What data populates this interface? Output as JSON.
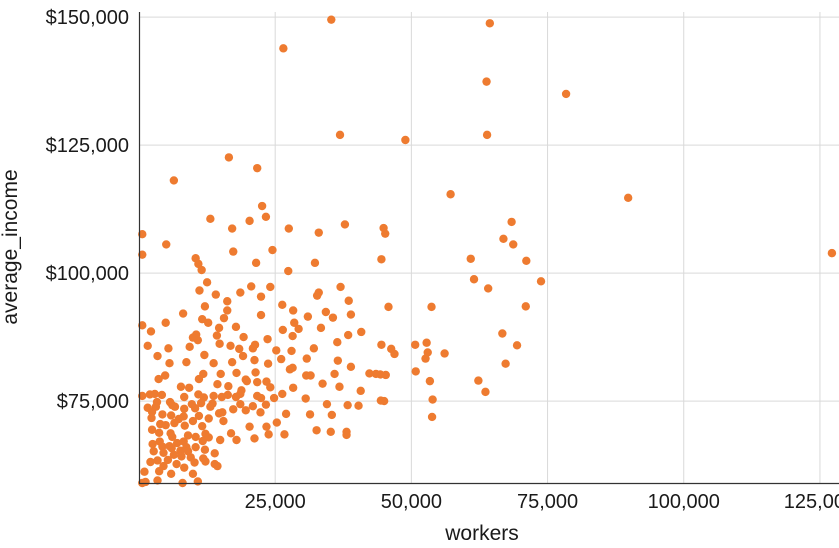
{
  "chart_data": {
    "type": "scatter",
    "xlabel": "workers",
    "ylabel": "average_income",
    "xlim": [
      0,
      128500
    ],
    "ylim": [
      59000,
      151000
    ],
    "x_ticks": [
      25000,
      50000,
      75000,
      100000,
      125000
    ],
    "x_tick_labels": [
      "25,000",
      "50,000",
      "75,000",
      "100,000",
      "125,000"
    ],
    "y_ticks": [
      75000,
      100000,
      125000,
      150000
    ],
    "y_tick_labels": [
      "$75,000",
      "$100,000",
      "$125,000",
      "$150,000"
    ],
    "grid": true,
    "marker_color": "#ee7b30",
    "points": [
      [
        35300,
        149500
      ],
      [
        64400,
        148800
      ],
      [
        26500,
        143900
      ],
      [
        63800,
        137400
      ],
      [
        78400,
        135000
      ],
      [
        36900,
        127000
      ],
      [
        63900,
        127000
      ],
      [
        48900,
        126000
      ],
      [
        16500,
        122600
      ],
      [
        21700,
        120500
      ],
      [
        6400,
        118100
      ],
      [
        57200,
        115400
      ],
      [
        89800,
        114700
      ],
      [
        22600,
        113100
      ],
      [
        127200,
        103900
      ],
      [
        13100,
        110600
      ],
      [
        23300,
        111000
      ],
      [
        20300,
        110200
      ],
      [
        37800,
        109500
      ],
      [
        68400,
        110000
      ],
      [
        44900,
        108800
      ],
      [
        27500,
        108700
      ],
      [
        17100,
        108700
      ],
      [
        600,
        107600
      ],
      [
        33000,
        107900
      ],
      [
        45200,
        107700
      ],
      [
        66900,
        106700
      ],
      [
        5000,
        105600
      ],
      [
        68700,
        105600
      ],
      [
        17300,
        104200
      ],
      [
        24500,
        104500
      ],
      [
        600,
        103600
      ],
      [
        44500,
        102700
      ],
      [
        60900,
        102800
      ],
      [
        71100,
        102400
      ],
      [
        32300,
        102000
      ],
      [
        10400,
        102900
      ],
      [
        21500,
        102000
      ],
      [
        10900,
        101800
      ],
      [
        11500,
        100600
      ],
      [
        27400,
        100400
      ],
      [
        61500,
        98800
      ],
      [
        73800,
        98400
      ],
      [
        12500,
        98200
      ],
      [
        64100,
        97000
      ],
      [
        24100,
        97300
      ],
      [
        37000,
        97300
      ],
      [
        20600,
        97400
      ],
      [
        18600,
        96200
      ],
      [
        11100,
        96600
      ],
      [
        33000,
        96200
      ],
      [
        32700,
        95600
      ],
      [
        14100,
        95800
      ],
      [
        38500,
        94600
      ],
      [
        22400,
        95400
      ],
      [
        16200,
        94500
      ],
      [
        71000,
        93500
      ],
      [
        45800,
        93400
      ],
      [
        26300,
        93800
      ],
      [
        53700,
        93400
      ],
      [
        12100,
        93500
      ],
      [
        28300,
        92700
      ],
      [
        34300,
        92400
      ],
      [
        22400,
        91800
      ],
      [
        38900,
        91900
      ],
      [
        16200,
        92700
      ],
      [
        8100,
        92100
      ],
      [
        31000,
        91500
      ],
      [
        35600,
        91300
      ],
      [
        12700,
        90300
      ],
      [
        600,
        89800
      ],
      [
        4900,
        90300
      ],
      [
        28500,
        90300
      ],
      [
        17800,
        89500
      ],
      [
        26400,
        88900
      ],
      [
        33400,
        89300
      ],
      [
        29300,
        89100
      ],
      [
        14700,
        89300
      ],
      [
        40800,
        88500
      ],
      [
        2200,
        88600
      ],
      [
        38400,
        87900
      ],
      [
        14300,
        87800
      ],
      [
        66700,
        88200
      ],
      [
        10500,
        88000
      ],
      [
        9900,
        87400
      ],
      [
        28200,
        87700
      ],
      [
        19200,
        87500
      ],
      [
        36400,
        86500
      ],
      [
        52800,
        86400
      ],
      [
        21300,
        86000
      ],
      [
        10800,
        86900
      ],
      [
        23600,
        87100
      ],
      [
        16800,
        85800
      ],
      [
        44500,
        86000
      ],
      [
        69400,
        85900
      ],
      [
        50700,
        86000
      ],
      [
        1600,
        85800
      ],
      [
        5400,
        85300
      ],
      [
        14800,
        86200
      ],
      [
        9300,
        85600
      ],
      [
        20900,
        85300
      ],
      [
        32100,
        85300
      ],
      [
        28000,
        84800
      ],
      [
        25200,
        84900
      ],
      [
        46300,
        85200
      ],
      [
        53000,
        84500
      ],
      [
        56100,
        84300
      ],
      [
        46900,
        84200
      ],
      [
        12000,
        84000
      ],
      [
        19100,
        83800
      ],
      [
        3400,
        83800
      ],
      [
        26100,
        83200
      ],
      [
        21200,
        83000
      ],
      [
        30800,
        83300
      ],
      [
        36500,
        82900
      ],
      [
        52600,
        83300
      ],
      [
        17100,
        82600
      ],
      [
        13700,
        82400
      ],
      [
        8700,
        82600
      ],
      [
        5600,
        82400
      ],
      [
        23700,
        82300
      ],
      [
        67300,
        82300
      ],
      [
        28200,
        81500
      ],
      [
        38900,
        81700
      ],
      [
        17900,
        80500
      ],
      [
        27700,
        81200
      ],
      [
        21400,
        80600
      ],
      [
        15000,
        80300
      ],
      [
        50800,
        80800
      ],
      [
        11800,
        80300
      ],
      [
        35900,
        80300
      ],
      [
        30700,
        80000
      ],
      [
        4800,
        80000
      ],
      [
        44300,
        80200
      ],
      [
        45300,
        80100
      ],
      [
        3600,
        79300
      ],
      [
        11000,
        79300
      ],
      [
        19600,
        79200
      ],
      [
        62300,
        79000
      ],
      [
        53400,
        78900
      ],
      [
        23400,
        78800
      ],
      [
        33700,
        78400
      ],
      [
        14400,
        78300
      ],
      [
        16400,
        77900
      ],
      [
        7700,
        77800
      ],
      [
        24100,
        77700
      ],
      [
        28300,
        77600
      ],
      [
        36800,
        77800
      ],
      [
        9200,
        77600
      ],
      [
        18800,
        77100
      ],
      [
        40700,
        77000
      ],
      [
        63600,
        76800
      ],
      [
        26300,
        76400
      ],
      [
        18600,
        76400
      ],
      [
        10900,
        76300
      ],
      [
        21700,
        76000
      ],
      [
        4200,
        76200
      ],
      [
        13700,
        76000
      ],
      [
        2000,
        76300
      ],
      [
        2900,
        76400
      ],
      [
        600,
        76000
      ],
      [
        8300,
        75800
      ],
      [
        11900,
        75700
      ],
      [
        15200,
        75800
      ],
      [
        17800,
        75800
      ],
      [
        22400,
        75600
      ],
      [
        24800,
        75600
      ],
      [
        30600,
        75500
      ],
      [
        53900,
        75300
      ],
      [
        44400,
        75100
      ],
      [
        45000,
        75000
      ],
      [
        3300,
        74800
      ],
      [
        5700,
        74800
      ],
      [
        13500,
        74500
      ],
      [
        9700,
        74400
      ],
      [
        11400,
        74600
      ],
      [
        6100,
        74200
      ],
      [
        3100,
        73900
      ],
      [
        18600,
        74400
      ],
      [
        20900,
        74000
      ],
      [
        23300,
        74300
      ],
      [
        34500,
        74400
      ],
      [
        38300,
        74200
      ],
      [
        40300,
        74100
      ],
      [
        13100,
        73900
      ],
      [
        6600,
        73900
      ],
      [
        10300,
        73600
      ],
      [
        8300,
        73500
      ],
      [
        1600,
        73700
      ],
      [
        17300,
        73400
      ],
      [
        19600,
        73200
      ],
      [
        14700,
        72600
      ],
      [
        22300,
        72800
      ],
      [
        27000,
        72500
      ],
      [
        31400,
        72400
      ],
      [
        35400,
        72300
      ],
      [
        2400,
        72900
      ],
      [
        4300,
        72400
      ],
      [
        5900,
        72200
      ],
      [
        8200,
        72000
      ],
      [
        11000,
        72100
      ],
      [
        12800,
        71600
      ],
      [
        53800,
        71900
      ],
      [
        2300,
        71700
      ],
      [
        7300,
        71500
      ],
      [
        9900,
        71100
      ],
      [
        15500,
        71100
      ],
      [
        25300,
        70800
      ],
      [
        4900,
        70300
      ],
      [
        6500,
        70700
      ],
      [
        3900,
        70500
      ],
      [
        8400,
        70200
      ],
      [
        11600,
        70100
      ],
      [
        20300,
        70000
      ],
      [
        23400,
        70000
      ],
      [
        2400,
        69400
      ],
      [
        35200,
        69000
      ],
      [
        32600,
        69300
      ],
      [
        38100,
        69000
      ],
      [
        3700,
        68800
      ],
      [
        5800,
        68700
      ],
      [
        12200,
        68600
      ],
      [
        16900,
        68700
      ],
      [
        23800,
        68500
      ],
      [
        26700,
        68500
      ],
      [
        38100,
        68400
      ],
      [
        9000,
        68300
      ],
      [
        10400,
        68000
      ],
      [
        12800,
        67900
      ],
      [
        6100,
        68000
      ],
      [
        14900,
        67400
      ],
      [
        17900,
        67400
      ],
      [
        21200,
        67700
      ],
      [
        3800,
        67100
      ],
      [
        7000,
        66800
      ],
      [
        8200,
        67100
      ],
      [
        11700,
        67200
      ],
      [
        2500,
        66600
      ],
      [
        4300,
        66100
      ],
      [
        5600,
        66200
      ],
      [
        8700,
        66000
      ],
      [
        10400,
        66000
      ],
      [
        6000,
        65800
      ],
      [
        12100,
        65500
      ],
      [
        7600,
        65300
      ],
      [
        2700,
        65200
      ],
      [
        4500,
        64900
      ],
      [
        9000,
        65200
      ],
      [
        13900,
        64800
      ],
      [
        6400,
        64500
      ],
      [
        7800,
        64200
      ],
      [
        9500,
        64000
      ],
      [
        11800,
        63800
      ],
      [
        3400,
        63400
      ],
      [
        5300,
        63500
      ],
      [
        2100,
        63100
      ],
      [
        12200,
        63200
      ],
      [
        10200,
        63000
      ],
      [
        6900,
        62700
      ],
      [
        13900,
        62700
      ],
      [
        4500,
        62300
      ],
      [
        8300,
        62000
      ],
      [
        3700,
        61300
      ],
      [
        1000,
        61200
      ],
      [
        5900,
        60800
      ],
      [
        9900,
        60800
      ],
      [
        1200,
        59200
      ],
      [
        8000,
        59000
      ],
      [
        10800,
        59300
      ],
      [
        3400,
        59500
      ],
      [
        600,
        59000
      ],
      [
        14400,
        62300
      ],
      [
        16300,
        76200
      ],
      [
        21700,
        78700
      ],
      [
        19800,
        78900
      ],
      [
        15300,
        72800
      ],
      [
        18400,
        85200
      ],
      [
        31500,
        80000
      ],
      [
        42300,
        80400
      ],
      [
        43500,
        80300
      ],
      [
        11600,
        91000
      ],
      [
        15600,
        91200
      ]
    ]
  }
}
